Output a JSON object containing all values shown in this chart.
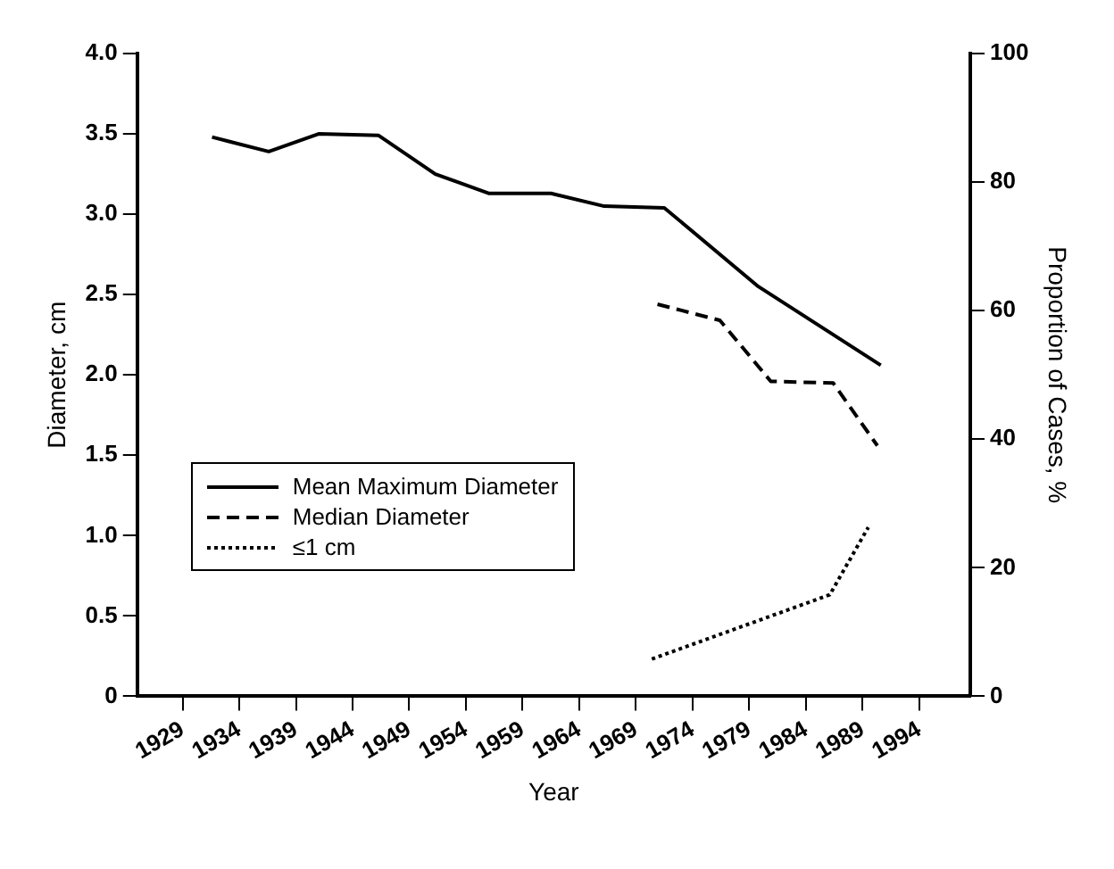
{
  "chart_data": {
    "type": "line",
    "xlabel": "Year",
    "ylabel": "Diameter, cm",
    "y2label": "Proportion of Cases, %",
    "xlim": [
      1925,
      1998.5
    ],
    "xticks": [
      1929,
      1934,
      1939,
      1944,
      1949,
      1954,
      1959,
      1964,
      1969,
      1974,
      1979,
      1984,
      1989,
      1994
    ],
    "ylim": [
      0,
      4
    ],
    "yticks": [
      0,
      0.5,
      {
        "value": 1,
        "label": "1.0"
      },
      1.5,
      {
        "value": 2,
        "label": "2.0"
      },
      2.5,
      {
        "value": 3,
        "label": "3.0"
      },
      3.5,
      {
        "value": 4,
        "label": "4.0"
      }
    ],
    "y2lim": [
      0,
      100
    ],
    "y2ticks": [
      0,
      20,
      40,
      60,
      80,
      100
    ],
    "grid": false,
    "legend": "bottom left",
    "marker": "none",
    "series": [
      {
        "name": "Mean Maximum Diameter",
        "color": "#000000",
        "line_style": "solid",
        "x": [
          1931.6,
          1936.6,
          1941,
          1946.3,
          1951.3,
          1956,
          1961.5,
          1966.2,
          1971.5,
          1979.8,
          1990.6
        ],
        "values": [
          3.48,
          3.39,
          3.5,
          3.49,
          3.25,
          3.13,
          3.13,
          3.05,
          3.04,
          2.55,
          2.06
        ]
      },
      {
        "name": "Median Diameter",
        "color": "#000000",
        "line_style": "dashed",
        "x": [
          1970.9,
          1976.4,
          1980.9,
          1986.4,
          1990.3
        ],
        "values": [
          2.44,
          2.34,
          1.96,
          1.95,
          1.56
        ]
      },
      {
        "name": "≤1 cm",
        "color": "#000000",
        "line_style": "dotted",
        "axis": "y2",
        "x": [
          1970.4,
          1986.1,
          1989.5
        ],
        "values": [
          5.8,
          15.8,
          26.3
        ]
      }
    ]
  }
}
